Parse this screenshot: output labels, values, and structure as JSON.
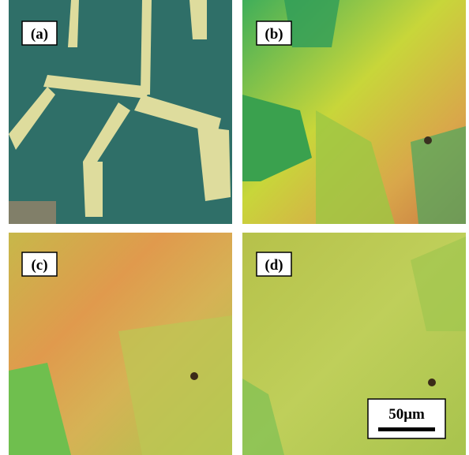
{
  "panels": [
    {
      "label": "(a)"
    },
    {
      "label": "(b)"
    },
    {
      "label": "(c)"
    },
    {
      "label": "(d)"
    }
  ],
  "scale_bar": {
    "label": "50μm"
  }
}
